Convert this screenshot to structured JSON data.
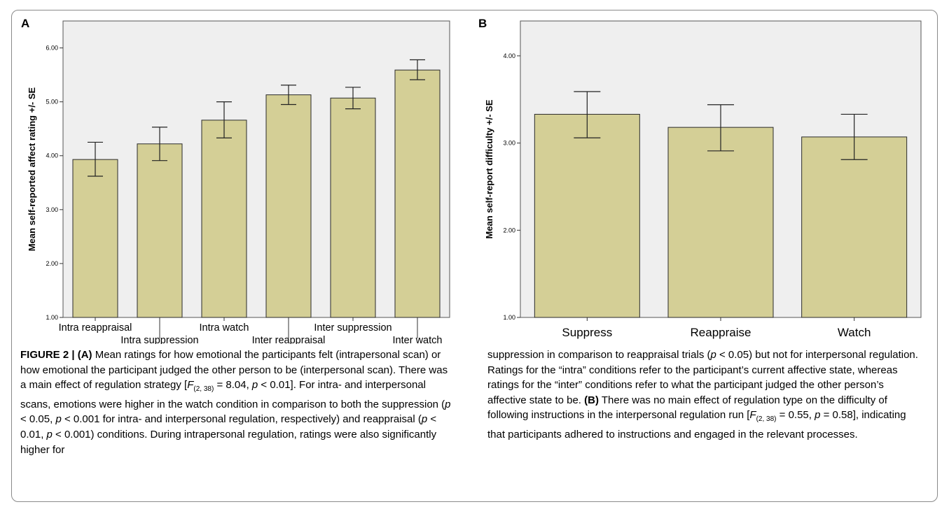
{
  "panel_a": {
    "letter": "A"
  },
  "panel_b": {
    "letter": "B"
  },
  "chart_data": [
    {
      "type": "bar",
      "panel": "A",
      "ylabel": "Mean self-reported affect rating +/- SE",
      "xlabel": "",
      "ylim": [
        1.0,
        6.5
      ],
      "yticks": [
        "1.00",
        "2.00",
        "3.00",
        "4.00",
        "5.00",
        "6.00"
      ],
      "categories": [
        "Intra reappraisal",
        "Intra suppression",
        "Intra watch",
        "Inter reappraisal",
        "Inter suppression",
        "Inter watch"
      ],
      "values": [
        3.93,
        4.22,
        4.66,
        5.13,
        5.07,
        5.59
      ],
      "error_low": [
        3.62,
        3.91,
        4.33,
        4.95,
        4.87,
        5.41
      ],
      "error_high": [
        4.25,
        4.53,
        5.0,
        5.31,
        5.27,
        5.78
      ],
      "bar_color": "#d4cf96",
      "background_color": "#efefef",
      "grid": false
    },
    {
      "type": "bar",
      "panel": "B",
      "ylabel": "Mean self-report difficulty +/- SE",
      "xlabel": "",
      "ylim": [
        1.0,
        4.4
      ],
      "yticks": [
        "1.00",
        "2.00",
        "3.00",
        "4.00"
      ],
      "categories": [
        "Suppress",
        "Reappraise",
        "Watch"
      ],
      "values": [
        3.33,
        3.18,
        3.07
      ],
      "error_low": [
        3.06,
        2.91,
        2.81
      ],
      "error_high": [
        3.59,
        3.44,
        3.33
      ],
      "bar_color": "#d4cf96",
      "background_color": "#efefef",
      "grid": false
    }
  ],
  "caption": {
    "label": "FIGURE 2 | ",
    "left": [
      {
        "b": "(A)"
      },
      {
        "t": " Mean ratings for how emotional the participants felt (intrapersonal scan) or how emotional the participant judged the other person to be (interpersonal scan). There was a main effect of regulation strategy ["
      },
      {
        "i": "F"
      },
      {
        "sub": "(2,  38)"
      },
      {
        "t": " = 8.04,  "
      },
      {
        "i": "p"
      },
      {
        "t": " < 0.01]. For intra- and interpersonal scans, emotions were higher in the watch condition in comparison to both the suppression ("
      },
      {
        "i": "p"
      },
      {
        "t": " < 0.05,  "
      },
      {
        "i": "p"
      },
      {
        "t": " < 0.001 for intra- and interpersonal regulation, respectively) and reappraisal ("
      },
      {
        "i": "p"
      },
      {
        "t": " < 0.01,  "
      },
      {
        "i": "p"
      },
      {
        "t": " < 0.001) conditions. During intrapersonal regulation, ratings were also significantly higher for"
      }
    ],
    "right": [
      {
        "t": "suppression in comparison to reappraisal trials ("
      },
      {
        "i": "p"
      },
      {
        "t": " < 0.05) but not for interpersonal regulation. Ratings for the “intra” conditions refer to the participant’s current affective state, whereas ratings for the “inter” conditions refer to what the participant judged the other person’s affective state to be. "
      },
      {
        "b": "(B)"
      },
      {
        "t": " There was no main effect of regulation type on the difficulty of following instructions in the interpersonal regulation run ["
      },
      {
        "i": "F"
      },
      {
        "sub": "(2,  38)"
      },
      {
        "t": " = 0.55,  "
      },
      {
        "i": "p"
      },
      {
        "t": " = 0.58], indicating that participants adhered to instructions and engaged in the relevant processes."
      }
    ]
  }
}
